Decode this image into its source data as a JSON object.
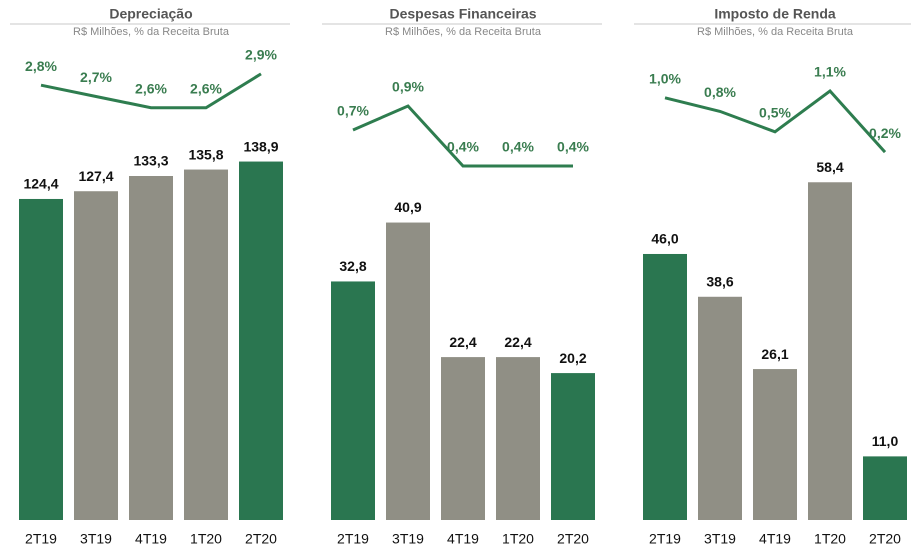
{
  "chart_data": [
    {
      "type": "bar",
      "title": "Depreciação",
      "subtitle": "R$ Milhões, % da Receita Bruta",
      "categories": [
        "2T19",
        "3T19",
        "4T19",
        "1T20",
        "2T20"
      ],
      "values": [
        124.4,
        127.4,
        133.3,
        135.8,
        138.9
      ],
      "value_labels": [
        "124,4",
        "127,4",
        "133,3",
        "135,8",
        "138,9"
      ],
      "bar_colors": [
        "#2a7650",
        "#908f85",
        "#908f85",
        "#908f85",
        "#2a7650"
      ],
      "line_values": [
        2.8,
        2.7,
        2.6,
        2.6,
        2.9
      ],
      "line_value_labels": [
        "2,8%",
        "2,7%",
        "2,6%",
        "2,6%",
        "2,9%"
      ],
      "line_color": "#2e7d4f",
      "ylim": [
        0,
        186
      ],
      "y2lim": [
        -1.05,
        3.2
      ]
    },
    {
      "type": "bar",
      "title": "Despesas Financeiras",
      "subtitle": "R$ Milhões, % da Receita Bruta",
      "categories": [
        "2T19",
        "3T19",
        "4T19",
        "1T20",
        "2T20"
      ],
      "values": [
        32.8,
        40.9,
        22.4,
        22.4,
        20.2
      ],
      "value_labels": [
        "32,8",
        "40,9",
        "22,4",
        "22,4",
        "20,2"
      ],
      "bar_colors": [
        "#2a7650",
        "#908f85",
        "#908f85",
        "#908f85",
        "#2a7650"
      ],
      "line_values": [
        0.7,
        0.9,
        0.4,
        0.4,
        0.4
      ],
      "line_value_labels": [
        "0,7%",
        "0,9%",
        "0,4%",
        "0,4%",
        "0,4%"
      ],
      "line_color": "#2e7d4f",
      "ylim": [
        0,
        66
      ],
      "y2lim": [
        -2.55,
        1.45
      ]
    },
    {
      "type": "bar",
      "title": "Imposto de Renda",
      "subtitle": "R$ Milhões, % da Receita Bruta",
      "categories": [
        "2T19",
        "3T19",
        "4T19",
        "1T20",
        "2T20"
      ],
      "values": [
        46.0,
        38.6,
        26.1,
        58.4,
        11.0
      ],
      "value_labels": [
        "46,0",
        "38,6",
        "26,1",
        "58,4",
        "11,0"
      ],
      "bar_colors": [
        "#2a7650",
        "#908f85",
        "#908f85",
        "#908f85",
        "#2a7650"
      ],
      "line_values": [
        1.0,
        0.8,
        0.5,
        1.1,
        0.2
      ],
      "line_value_labels": [
        "1,0%",
        "0,8%",
        "0,5%",
        "1,1%",
        "0,2%"
      ],
      "line_color": "#2e7d4f",
      "ylim": [
        0,
        83
      ],
      "y2lim": [
        -5.21,
        1.85
      ]
    }
  ]
}
